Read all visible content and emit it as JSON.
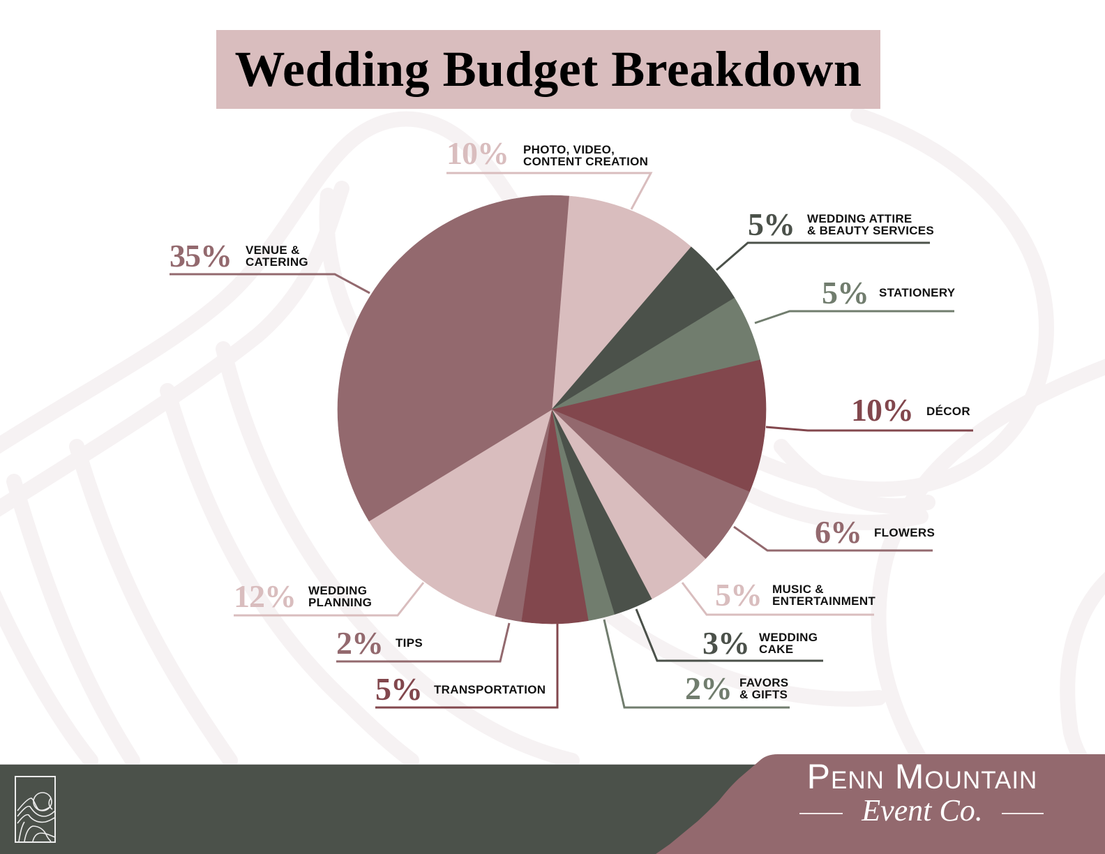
{
  "title": "Wedding Budget Breakdown",
  "chart_data": {
    "type": "pie",
    "title": "Wedding Budget Breakdown",
    "unit": "%",
    "direction": "clockwise",
    "start_angle_deg": 4.6,
    "categories": [
      "Photo, Video, Content Creation",
      "Wedding Attire & Beauty Services",
      "Stationery",
      "Décor",
      "Flowers",
      "Music & Entertainment",
      "Wedding Cake",
      "Favors & Gifts",
      "Transportation",
      "Tips",
      "Wedding Planning",
      "Venue & Catering"
    ],
    "values": [
      10,
      5,
      5,
      10,
      6,
      5,
      3,
      2,
      5,
      2,
      12,
      35
    ],
    "colors": [
      "#d9bdbe",
      "#4b514a",
      "#717d6e",
      "#82474d",
      "#93696e",
      "#d9bdbe",
      "#4b514a",
      "#717d6e",
      "#82474d",
      "#93696e",
      "#d9bdbe",
      "#93696e"
    ],
    "legend_position": "callouts"
  },
  "labels": [
    {
      "key": "photo-video",
      "pct": "10%",
      "line1": "PHOTO, VIDEO,",
      "line2": "CONTENT CREATION",
      "color": "#d9bdbe"
    },
    {
      "key": "attire-beauty",
      "pct": "5%",
      "line1": "WEDDING ATTIRE",
      "line2": "& BEAUTY SERVICES",
      "color": "#4b514a"
    },
    {
      "key": "stationery",
      "pct": "5%",
      "line1": "STATIONERY",
      "line2": "",
      "color": "#717d6e"
    },
    {
      "key": "decor",
      "pct": "10%",
      "line1": "DÉCOR",
      "line2": "",
      "color": "#82474d"
    },
    {
      "key": "flowers",
      "pct": "6%",
      "line1": "FLOWERS",
      "line2": "",
      "color": "#93696e"
    },
    {
      "key": "music-entertainment",
      "pct": "5%",
      "line1": "MUSIC &",
      "line2": "ENTERTAINMENT",
      "color": "#d9bdbe"
    },
    {
      "key": "wedding-cake",
      "pct": "3%",
      "line1": "WEDDING",
      "line2": "CAKE",
      "color": "#4b514a"
    },
    {
      "key": "favors-gifts",
      "pct": "2%",
      "line1": "FAVORS",
      "line2": "& GIFTS",
      "color": "#717d6e"
    },
    {
      "key": "transportation",
      "pct": "5%",
      "line1": "TRANSPORTATION",
      "line2": "",
      "color": "#82474d"
    },
    {
      "key": "tips",
      "pct": "2%",
      "line1": "TIPS",
      "line2": "",
      "color": "#93696e"
    },
    {
      "key": "wedding-planning",
      "pct": "12%",
      "line1": "WEDDING",
      "line2": "PLANNING",
      "color": "#d9bdbe"
    },
    {
      "key": "venue-catering",
      "pct": "35%",
      "line1": "VENUE &",
      "line2": "CATERING",
      "color": "#93696e"
    }
  ],
  "footer": {
    "brand_name": "Penn Mountain",
    "brand_sub": "Event Co.",
    "bar_color": "#4b514a",
    "accent_color": "#93696e",
    "logo_icon": "mountain-topo-icon"
  },
  "colors": {
    "title_banner": "#d9bdbe",
    "background_pattern": "#f6f2f3"
  }
}
